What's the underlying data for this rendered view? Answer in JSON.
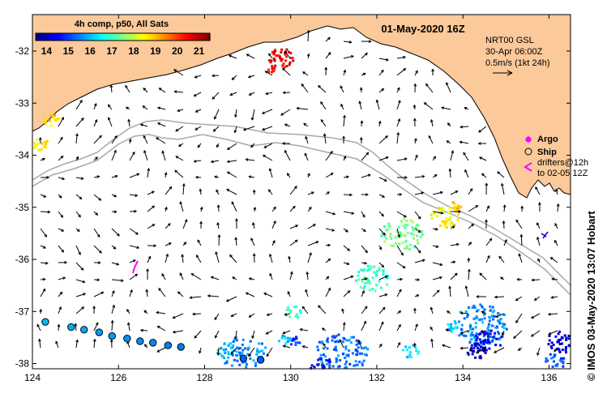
{
  "map": {
    "date_title": "01-May-2020 16Z",
    "colorbar": {
      "title": "4h comp, p50, All Sats",
      "tick_labels": [
        "14",
        "15",
        "16",
        "17",
        "18",
        "19",
        "20",
        "21"
      ],
      "vmin": 13.5,
      "vmax": 21.5,
      "colors": [
        "#00007f",
        "#0000ff",
        "#007fff",
        "#00ffff",
        "#7fff7f",
        "#ffff00",
        "#ff7f00",
        "#ff0000",
        "#7f0000"
      ]
    },
    "legend": {
      "model": "NRT00 GSL",
      "model_date": "30-Apr 06:00Z",
      "scale": "0.5m/s (1kt 24h)",
      "argo": "Argo",
      "ship": "Ship",
      "drifters_line1": "drifters@12h",
      "drifters_line2": "to 02-05 12Z"
    },
    "credit": "© IMOS 03-May-2020 13:07 Hobart",
    "land_color": "#fbc99a",
    "ocean_color": "#ffffff",
    "x_axis": {
      "range": [
        124,
        136.5
      ],
      "ticks": [
        "124",
        "126",
        "128",
        "130",
        "132",
        "134",
        "136"
      ]
    },
    "y_axis": {
      "range": [
        -38.1,
        -31.3
      ],
      "ticks": [
        "-32",
        "-33",
        "-34",
        "-35",
        "-36",
        "-37",
        "-38"
      ]
    },
    "drifter_track": [
      {
        "lon": 124.3,
        "lat": -37.2
      },
      {
        "lon": 124.9,
        "lat": -37.3
      },
      {
        "lon": 125.2,
        "lat": -37.35
      },
      {
        "lon": 125.55,
        "lat": -37.4
      },
      {
        "lon": 125.85,
        "lat": -37.47
      },
      {
        "lon": 126.2,
        "lat": -37.52
      },
      {
        "lon": 126.5,
        "lat": -37.57
      },
      {
        "lon": 126.8,
        "lat": -37.6
      },
      {
        "lon": 127.15,
        "lat": -37.65
      },
      {
        "lon": 127.45,
        "lat": -37.68
      },
      {
        "lon": 128.9,
        "lat": -37.9
      },
      {
        "lon": 129.3,
        "lat": -37.93
      }
    ]
  }
}
